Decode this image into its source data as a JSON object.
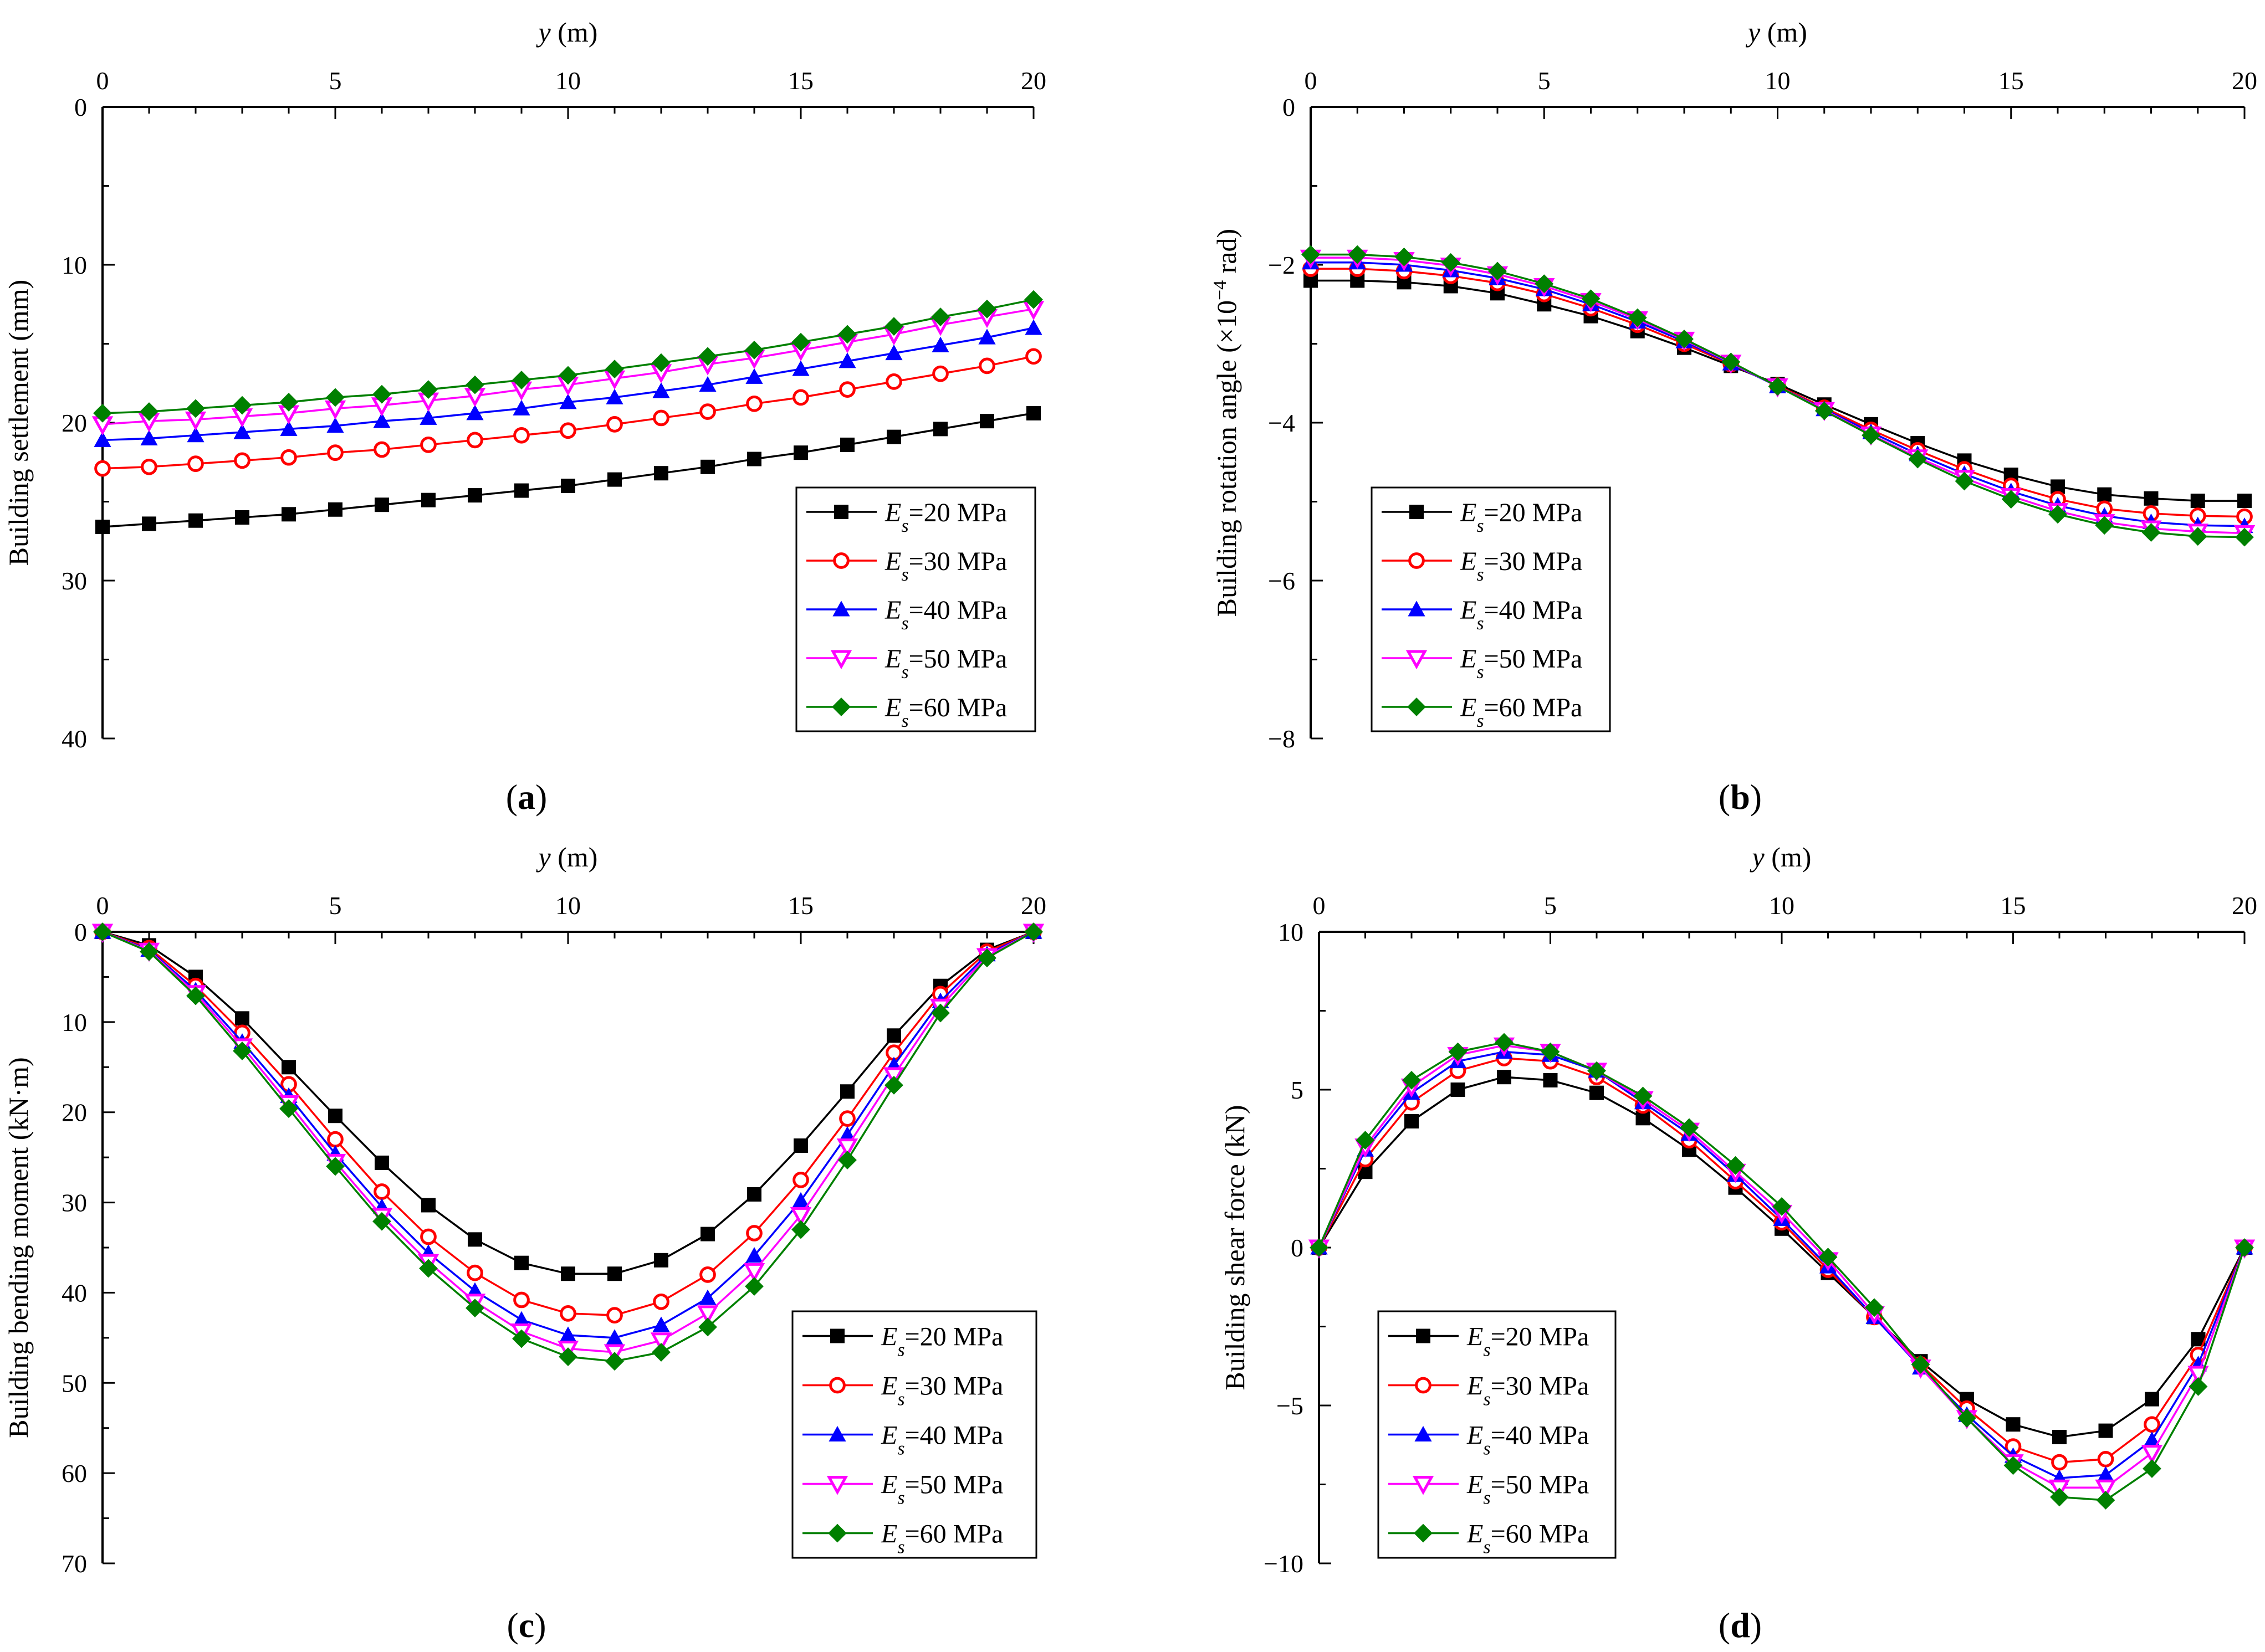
{
  "chart_data": [
    {
      "id": "a",
      "type": "line",
      "caption": "(a)",
      "xlabel": "y (m)",
      "ylabel": "Building settlement (mm)",
      "xlim": [
        0,
        20
      ],
      "ylim": [
        0,
        40
      ],
      "y_inverted": true,
      "xticks": [
        0,
        5,
        10,
        15,
        20
      ],
      "yticks": [
        0,
        10,
        20,
        30,
        40
      ],
      "legend_position": "bottom-right",
      "x": [
        0,
        1,
        2,
        3,
        4,
        5,
        6,
        7,
        8,
        9,
        10,
        11,
        12,
        13,
        14,
        15,
        16,
        17,
        18,
        19,
        20
      ],
      "series": [
        {
          "name": "Es=20 MPa",
          "label_main": "E",
          "label_sub": "s",
          "label_rest": "=20 MPa",
          "color": "#000000",
          "marker": "square",
          "values": [
            26.6,
            26.4,
            26.2,
            26.0,
            25.8,
            25.5,
            25.2,
            24.9,
            24.6,
            24.3,
            24.0,
            23.6,
            23.2,
            22.8,
            22.3,
            21.9,
            21.4,
            20.9,
            20.4,
            19.9,
            19.4
          ]
        },
        {
          "name": "Es=30 MPa",
          "label_main": "E",
          "label_sub": "s",
          "label_rest": "=30 MPa",
          "color": "#ff0000",
          "marker": "circle",
          "values": [
            22.9,
            22.8,
            22.6,
            22.4,
            22.2,
            21.9,
            21.7,
            21.4,
            21.1,
            20.8,
            20.5,
            20.1,
            19.7,
            19.3,
            18.8,
            18.4,
            17.9,
            17.4,
            16.9,
            16.4,
            15.8
          ]
        },
        {
          "name": "Es=40 MPa",
          "label_main": "E",
          "label_sub": "s",
          "label_rest": "=40 MPa",
          "color": "#0000ff",
          "marker": "triangle-up",
          "values": [
            21.1,
            21.0,
            20.8,
            20.6,
            20.4,
            20.2,
            19.9,
            19.7,
            19.4,
            19.1,
            18.7,
            18.4,
            18.0,
            17.6,
            17.1,
            16.6,
            16.1,
            15.6,
            15.1,
            14.6,
            14.0
          ]
        },
        {
          "name": "Es=50 MPa",
          "label_main": "E",
          "label_sub": "s",
          "label_rest": "=50 MPa",
          "color": "#ff00ff",
          "marker": "triangle-down",
          "values": [
            20.1,
            19.9,
            19.8,
            19.6,
            19.4,
            19.1,
            18.9,
            18.6,
            18.3,
            17.9,
            17.6,
            17.2,
            16.8,
            16.3,
            15.9,
            15.4,
            14.9,
            14.4,
            13.8,
            13.3,
            12.8
          ]
        },
        {
          "name": "Es=60 MPa",
          "label_main": "E",
          "label_sub": "s",
          "label_rest": "=60 MPa",
          "color": "#008000",
          "marker": "diamond",
          "values": [
            19.4,
            19.3,
            19.1,
            18.9,
            18.7,
            18.4,
            18.2,
            17.9,
            17.6,
            17.3,
            17.0,
            16.6,
            16.2,
            15.8,
            15.4,
            14.9,
            14.4,
            13.9,
            13.3,
            12.8,
            12.2
          ]
        }
      ]
    },
    {
      "id": "b",
      "type": "line",
      "caption": "(b)",
      "xlabel": "y (m)",
      "ylabel_main": "Building rotation angle (×10",
      "ylabel_sup": "−4",
      "ylabel_tail": " rad)",
      "xlim": [
        0,
        20
      ],
      "ylim": [
        -8,
        0
      ],
      "y_inverted": false,
      "xticks": [
        0,
        5,
        10,
        15,
        20
      ],
      "yticks": [
        0,
        -2,
        -4,
        -6,
        -8
      ],
      "legend_position": "bottom-left",
      "x": [
        0,
        1,
        2,
        3,
        4,
        5,
        6,
        7,
        8,
        9,
        10,
        11,
        12,
        13,
        14,
        15,
        16,
        17,
        18,
        19,
        20
      ],
      "series": [
        {
          "name": "Es=20 MPa",
          "label_main": "E",
          "label_sub": "s",
          "label_rest": "=20 MPa",
          "color": "#000000",
          "marker": "square",
          "values": [
            -2.2,
            -2.2,
            -2.22,
            -2.27,
            -2.36,
            -2.5,
            -2.65,
            -2.84,
            -3.05,
            -3.28,
            -3.51,
            -3.77,
            -4.02,
            -4.26,
            -4.48,
            -4.66,
            -4.81,
            -4.91,
            -4.96,
            -4.99,
            -4.99
          ]
        },
        {
          "name": "Es=30 MPa",
          "label_main": "E",
          "label_sub": "s",
          "label_rest": "=30 MPa",
          "color": "#ff0000",
          "marker": "circle",
          "values": [
            -2.05,
            -2.05,
            -2.08,
            -2.14,
            -2.23,
            -2.37,
            -2.55,
            -2.76,
            -3.0,
            -3.26,
            -3.53,
            -3.81,
            -4.09,
            -4.35,
            -4.59,
            -4.8,
            -4.97,
            -5.09,
            -5.15,
            -5.18,
            -5.19
          ]
        },
        {
          "name": "Es=40 MPa",
          "label_main": "E",
          "label_sub": "s",
          "label_rest": "=40 MPa",
          "color": "#0000ff",
          "marker": "triangle-up",
          "values": [
            -1.97,
            -1.97,
            -2.0,
            -2.07,
            -2.17,
            -2.31,
            -2.5,
            -2.72,
            -2.97,
            -3.25,
            -3.54,
            -3.83,
            -4.12,
            -4.4,
            -4.65,
            -4.87,
            -5.05,
            -5.18,
            -5.26,
            -5.3,
            -5.31
          ]
        },
        {
          "name": "Es=50 MPa",
          "label_main": "E",
          "label_sub": "s",
          "label_rest": "=50 MPa",
          "color": "#ff00ff",
          "marker": "triangle-down",
          "values": [
            -1.91,
            -1.91,
            -1.94,
            -2.01,
            -2.12,
            -2.27,
            -2.46,
            -2.69,
            -2.95,
            -3.24,
            -3.54,
            -3.84,
            -4.15,
            -4.44,
            -4.7,
            -4.93,
            -5.12,
            -5.26,
            -5.34,
            -5.38,
            -5.4
          ]
        },
        {
          "name": "Es=60 MPa",
          "label_main": "E",
          "label_sub": "s",
          "label_rest": "=60 MPa",
          "color": "#008000",
          "marker": "diamond",
          "values": [
            -1.87,
            -1.87,
            -1.9,
            -1.97,
            -2.08,
            -2.24,
            -2.43,
            -2.67,
            -2.94,
            -3.23,
            -3.54,
            -3.85,
            -4.16,
            -4.46,
            -4.74,
            -4.97,
            -5.16,
            -5.3,
            -5.39,
            -5.44,
            -5.45
          ]
        }
      ]
    },
    {
      "id": "c",
      "type": "line",
      "caption": "(c)",
      "xlabel": "y (m)",
      "ylabel": "Building bending moment (kN·m)",
      "xlim": [
        0,
        20
      ],
      "ylim": [
        0,
        70
      ],
      "y_inverted": true,
      "xticks": [
        0,
        5,
        10,
        15,
        20
      ],
      "yticks": [
        0,
        10,
        20,
        30,
        40,
        50,
        60,
        70
      ],
      "legend_position": "bottom-right",
      "x": [
        0,
        1,
        2,
        3,
        4,
        5,
        6,
        7,
        8,
        9,
        10,
        11,
        12,
        13,
        14,
        15,
        16,
        17,
        18,
        19,
        20
      ],
      "series": [
        {
          "name": "Es=20 MPa",
          "label_main": "E",
          "label_sub": "s",
          "label_rest": "=20 MPa",
          "color": "#000000",
          "marker": "square",
          "values": [
            0,
            1.5,
            5.0,
            9.6,
            15.0,
            20.4,
            25.6,
            30.3,
            34.1,
            36.7,
            37.9,
            37.9,
            36.4,
            33.5,
            29.1,
            23.7,
            17.7,
            11.5,
            6.0,
            2.0,
            0
          ]
        },
        {
          "name": "Es=30 MPa",
          "label_main": "E",
          "label_sub": "s",
          "label_rest": "=30 MPa",
          "color": "#ff0000",
          "marker": "circle",
          "values": [
            0,
            1.8,
            6.0,
            11.2,
            16.9,
            23.0,
            28.8,
            33.8,
            37.8,
            40.8,
            42.3,
            42.5,
            41.0,
            38.0,
            33.4,
            27.5,
            20.7,
            13.4,
            6.9,
            2.2,
            0
          ]
        },
        {
          "name": "Es=40 MPa",
          "label_main": "E",
          "label_sub": "s",
          "label_rest": "=40 MPa",
          "color": "#0000ff",
          "marker": "triangle-up",
          "values": [
            0,
            2.0,
            6.5,
            12.2,
            18.2,
            24.6,
            30.5,
            35.6,
            39.8,
            43.0,
            44.7,
            45.0,
            43.6,
            40.6,
            35.9,
            29.8,
            22.5,
            14.8,
            7.7,
            2.5,
            0
          ]
        },
        {
          "name": "Es=50 MPa",
          "label_main": "E",
          "label_sub": "s",
          "label_rest": "=50 MPa",
          "color": "#ff00ff",
          "marker": "triangle-down",
          "values": [
            0,
            2.1,
            6.8,
            12.7,
            19.0,
            25.5,
            31.5,
            36.6,
            41.0,
            44.3,
            46.2,
            46.6,
            45.3,
            42.3,
            37.6,
            31.4,
            23.8,
            15.9,
            8.3,
            2.7,
            0
          ]
        },
        {
          "name": "Es=60 MPa",
          "label_main": "E",
          "label_sub": "s",
          "label_rest": "=60 MPa",
          "color": "#008000",
          "marker": "diamond",
          "values": [
            0,
            2.2,
            7.1,
            13.2,
            19.6,
            26.0,
            32.1,
            37.3,
            41.7,
            45.1,
            47.1,
            47.6,
            46.6,
            43.8,
            39.3,
            33.0,
            25.3,
            17.0,
            9.0,
            2.9,
            0
          ]
        }
      ]
    },
    {
      "id": "d",
      "type": "line",
      "caption": "(d)",
      "xlabel": "y (m)",
      "ylabel": "Building shear force (kN)",
      "xlim": [
        0,
        20
      ],
      "ylim": [
        -10,
        10
      ],
      "y_inverted": false,
      "xticks": [
        0,
        5,
        10,
        15,
        20
      ],
      "yticks": [
        10,
        5,
        0,
        -5,
        -10
      ],
      "legend_position": "bottom-left",
      "x": [
        0,
        1,
        2,
        3,
        4,
        5,
        6,
        7,
        8,
        9,
        10,
        11,
        12,
        13,
        14,
        15,
        16,
        17,
        18,
        19,
        20
      ],
      "series": [
        {
          "name": "Es=20 MPa",
          "label_main": "E",
          "label_sub": "s",
          "label_rest": "=20 MPa",
          "color": "#000000",
          "marker": "square",
          "values": [
            0,
            2.4,
            4.0,
            5.0,
            5.4,
            5.3,
            4.9,
            4.1,
            3.1,
            1.9,
            0.6,
            -0.8,
            -2.2,
            -3.6,
            -4.8,
            -5.6,
            -6.0,
            -5.8,
            -4.8,
            -2.9,
            0
          ]
        },
        {
          "name": "Es=30 MPa",
          "label_main": "E",
          "label_sub": "s",
          "label_rest": "=30 MPa",
          "color": "#ff0000",
          "marker": "circle",
          "values": [
            0,
            2.8,
            4.6,
            5.6,
            6.0,
            5.9,
            5.4,
            4.5,
            3.4,
            2.1,
            0.8,
            -0.7,
            -2.2,
            -3.7,
            -5.1,
            -6.3,
            -6.8,
            -6.7,
            -5.6,
            -3.4,
            0
          ]
        },
        {
          "name": "Es=40 MPa",
          "label_main": "E",
          "label_sub": "s",
          "label_rest": "=40 MPa",
          "color": "#0000ff",
          "marker": "triangle-up",
          "values": [
            0,
            3.1,
            4.9,
            5.9,
            6.2,
            6.1,
            5.6,
            4.6,
            3.6,
            2.3,
            0.9,
            -0.6,
            -2.2,
            -3.8,
            -5.3,
            -6.6,
            -7.3,
            -7.2,
            -6.1,
            -3.7,
            0
          ]
        },
        {
          "name": "Es=50 MPa",
          "label_main": "E",
          "label_sub": "s",
          "label_rest": "=50 MPa",
          "color": "#ff00ff",
          "marker": "triangle-down",
          "values": [
            0,
            3.2,
            5.1,
            6.1,
            6.4,
            6.2,
            5.6,
            4.7,
            3.7,
            2.4,
            1.1,
            -0.4,
            -2.1,
            -3.8,
            -5.4,
            -6.8,
            -7.6,
            -7.6,
            -6.5,
            -4.0,
            0
          ]
        },
        {
          "name": "Es=60 MPa",
          "label_main": "E",
          "label_sub": "s",
          "label_rest": "=60 MPa",
          "color": "#008000",
          "marker": "diamond",
          "values": [
            0,
            3.4,
            5.3,
            6.2,
            6.5,
            6.2,
            5.6,
            4.8,
            3.8,
            2.6,
            1.3,
            -0.3,
            -1.9,
            -3.7,
            -5.4,
            -6.9,
            -7.9,
            -8.0,
            -7.0,
            -4.4,
            0
          ]
        }
      ]
    }
  ]
}
